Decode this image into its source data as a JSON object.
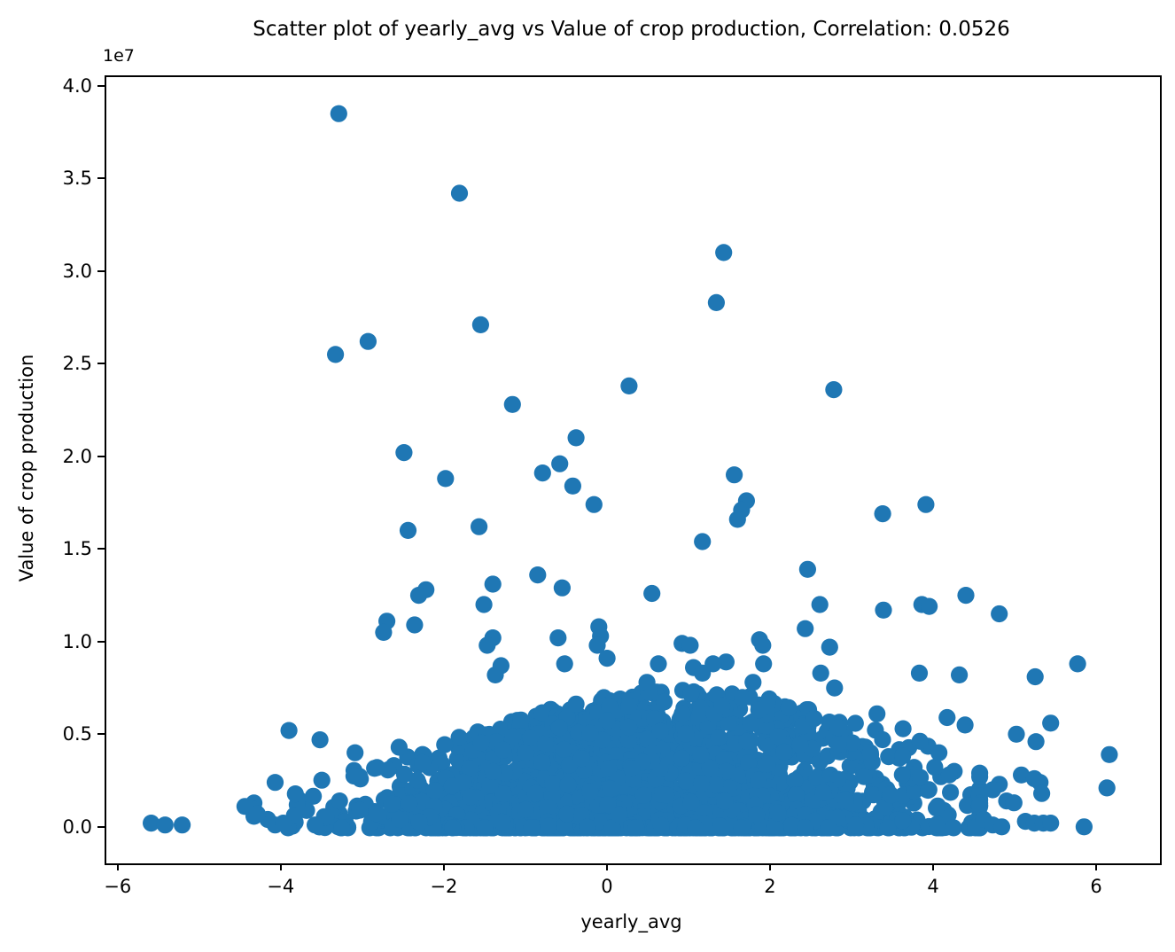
{
  "figure": {
    "background": "#ffffff",
    "axes_color": "#000000"
  },
  "chart_data": {
    "type": "scatter",
    "title": "Scatter plot of yearly_avg vs Value of crop production, Correlation: 0.0526",
    "correlation": "0.0526",
    "offset_text": "1e7",
    "xlabel": "yearly_avg",
    "ylabel": "Value of crop production",
    "marker_color": "#1f77b4",
    "marker_radius_px": 9.6,
    "grid": false,
    "legend": "none",
    "xlim": [
      -6.16,
      6.76
    ],
    "ylim_e7": [
      -0.187,
      4.057
    ],
    "x_ticks": [
      -6,
      -4,
      -2,
      0,
      2,
      4,
      6
    ],
    "x_tick_labels": [
      "−6",
      "−4",
      "−2",
      "0",
      "2",
      "4",
      "6"
    ],
    "y_ticks_e7": [
      0.0,
      0.5,
      1.0,
      1.5,
      2.0,
      2.5,
      3.0,
      3.5,
      4.0
    ],
    "y_tick_labels": [
      "0.0",
      "0.5",
      "1.0",
      "1.5",
      "2.0",
      "2.5",
      "3.0",
      "3.5",
      "4.0"
    ],
    "points_e7": [
      [
        -3.31,
        3.86
      ],
      [
        -1.83,
        3.43
      ],
      [
        1.41,
        3.11
      ],
      [
        1.32,
        2.84
      ],
      [
        -1.57,
        2.72
      ],
      [
        -2.95,
        2.63
      ],
      [
        -3.35,
        2.56
      ],
      [
        0.25,
        2.39
      ],
      [
        2.76,
        2.37
      ],
      [
        -1.18,
        2.29
      ],
      [
        -0.4,
        2.11
      ],
      [
        -2.51,
        2.03
      ],
      [
        -0.6,
        1.97
      ],
      [
        -0.81,
        1.92
      ],
      [
        1.54,
        1.91
      ],
      [
        -2.0,
        1.89
      ],
      [
        -0.44,
        1.85
      ],
      [
        1.69,
        1.77
      ],
      [
        -0.18,
        1.75
      ],
      [
        3.89,
        1.75
      ],
      [
        1.63,
        1.72
      ],
      [
        3.36,
        1.7
      ],
      [
        1.58,
        1.67
      ],
      [
        -1.59,
        1.63
      ],
      [
        -2.46,
        1.61
      ],
      [
        1.15,
        1.55
      ],
      [
        2.44,
        1.4
      ],
      [
        -0.87,
        1.37
      ],
      [
        -1.42,
        1.32
      ],
      [
        -0.57,
        1.3
      ],
      [
        -2.24,
        1.29
      ],
      [
        0.53,
        1.27
      ],
      [
        -2.33,
        1.26
      ],
      [
        4.38,
        1.26
      ],
      [
        -1.53,
        1.21
      ],
      [
        2.59,
        1.21
      ],
      [
        3.84,
        1.21
      ],
      [
        3.93,
        1.2
      ],
      [
        3.37,
        1.18
      ],
      [
        4.79,
        1.16
      ],
      [
        -2.72,
        1.12
      ],
      [
        -2.38,
        1.1
      ],
      [
        -0.12,
        1.09
      ],
      [
        2.41,
        1.08
      ],
      [
        -2.76,
        1.06
      ],
      [
        -0.1,
        1.04
      ],
      [
        -1.42,
        1.03
      ],
      [
        -0.62,
        1.03
      ],
      [
        1.85,
        1.02
      ],
      [
        0.9,
        1.0
      ],
      [
        -1.49,
        0.99
      ],
      [
        -0.14,
        0.99
      ],
      [
        1.0,
        0.99
      ],
      [
        1.89,
        0.99
      ],
      [
        2.71,
        0.98
      ],
      [
        -0.02,
        0.92
      ],
      [
        1.44,
        0.9
      ],
      [
        -0.54,
        0.89
      ],
      [
        0.61,
        0.89
      ],
      [
        1.28,
        0.89
      ],
      [
        1.9,
        0.89
      ],
      [
        5.75,
        0.89
      ],
      [
        -1.32,
        0.88
      ],
      [
        1.04,
        0.87
      ],
      [
        2.6,
        0.84
      ],
      [
        3.81,
        0.84
      ],
      [
        1.15,
        0.84
      ],
      [
        -1.39,
        0.83
      ],
      [
        4.3,
        0.83
      ],
      [
        5.23,
        0.82
      ],
      [
        0.47,
        0.79
      ],
      [
        1.77,
        0.79
      ],
      [
        2.77,
        0.76
      ],
      [
        3.29,
        0.62
      ],
      [
        4.15,
        0.6
      ],
      [
        5.42,
        0.57
      ],
      [
        4.37,
        0.56
      ],
      [
        3.61,
        0.54
      ],
      [
        5.0,
        0.51
      ],
      [
        5.24,
        0.47
      ],
      [
        4.05,
        0.41
      ],
      [
        6.14,
        0.4
      ],
      [
        5.06,
        0.29
      ],
      [
        5.22,
        0.27
      ],
      [
        5.29,
        0.25
      ],
      [
        4.79,
        0.24
      ],
      [
        6.11,
        0.22
      ],
      [
        4.71,
        0.21
      ],
      [
        5.31,
        0.19
      ],
      [
        4.88,
        0.15
      ],
      [
        4.97,
        0.14
      ],
      [
        4.6,
        0.05
      ],
      [
        5.11,
        0.04
      ],
      [
        5.22,
        0.03
      ],
      [
        5.33,
        0.03
      ],
      [
        5.42,
        0.03
      ],
      [
        4.71,
        0.02
      ],
      [
        4.82,
        0.01
      ],
      [
        5.83,
        0.01
      ],
      [
        -5.61,
        0.03
      ],
      [
        -5.44,
        0.02
      ],
      [
        -5.23,
        0.02
      ],
      [
        -4.46,
        0.12
      ],
      [
        -4.09,
        0.25
      ],
      [
        -3.92,
        0.53
      ],
      [
        -3.54,
        0.48
      ],
      [
        -3.11,
        0.41
      ],
      [
        -2.84,
        0.33
      ],
      [
        -2.57,
        0.44
      ],
      [
        -3.3,
        0.15
      ],
      [
        -3.05,
        0.1
      ],
      [
        -4.18,
        0.05
      ],
      [
        -4.31,
        0.08
      ],
      [
        -4.09,
        0.02
      ],
      [
        -3.99,
        0.03
      ],
      [
        -3.6,
        0.02
      ]
    ],
    "dense_cluster": {
      "description": "heavily overplotted bulk of points hugging y=0, densest between x=-2.5 and x=3.5, upper envelope ~0.75e7 near x=1 tapering to ~0.2e7 at the extremes",
      "count": 2300,
      "seed": 7,
      "x_mixture": [
        {
          "weight": 0.55,
          "mean": 1.25,
          "sd": 1.4
        },
        {
          "weight": 0.45,
          "mean": -0.55,
          "sd": 1.3
        }
      ],
      "x_clip": [
        -4.35,
        4.55
      ],
      "envelope": {
        "floor_e7": 0.05,
        "peak_e7": 0.7,
        "center_x": 0.9,
        "sd_x": 2.9
      },
      "y_power": 2.15,
      "y_min_e7": 0.005
    }
  }
}
